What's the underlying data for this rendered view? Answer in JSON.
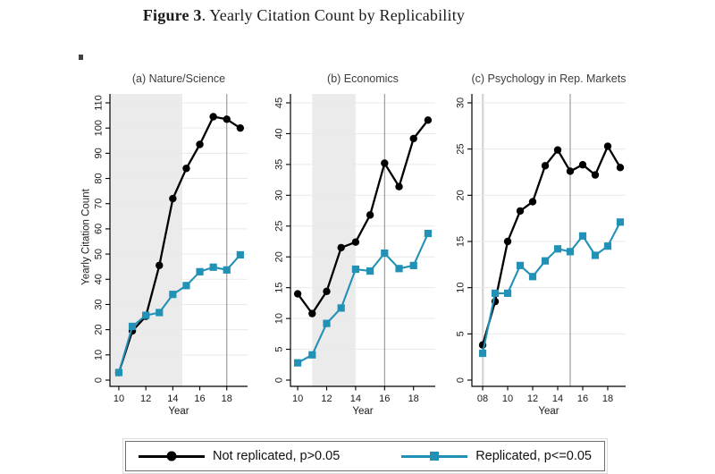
{
  "figure": {
    "title_bold": "Figure 3",
    "title_rest": ". Yearly Citation Count by Replicability"
  },
  "colors": {
    "not_replicated": "#000000",
    "replicated": "#2191b5",
    "shading": "#ebebeb",
    "shading_narrow": "#d6d6d6",
    "gridline": "#e9e9e9",
    "refline": "#8a8a8a",
    "axis": "#000000",
    "panel_title": "#3d3d3d",
    "tick_text": "#1a1a1a"
  },
  "legend": {
    "items": [
      {
        "label": "Not replicated, p>0.05",
        "marker": "circle",
        "color": "#000000"
      },
      {
        "label": "Replicated, p<=0.05",
        "marker": "square",
        "color": "#2191b5"
      }
    ]
  },
  "chart_data": [
    {
      "type": "line",
      "title": "(a) Nature/Science",
      "xlabel": "Year",
      "ylabel": "Yearly Citation Count",
      "x": [
        10,
        11,
        12,
        13,
        14,
        15,
        16,
        17,
        18,
        19
      ],
      "xtick_values": [
        10,
        12,
        14,
        16,
        18
      ],
      "xtick_labels": [
        "10",
        "12",
        "14",
        "16",
        "18"
      ],
      "ylim": [
        0,
        110
      ],
      "yticks": [
        0,
        10,
        20,
        30,
        40,
        50,
        60,
        70,
        80,
        90,
        100,
        110
      ],
      "shaded_span": [
        9.34,
        14.7
      ],
      "refline_x": 18,
      "grid": true,
      "legend_position": "bottom",
      "series": [
        {
          "name": "Not replicated, p>0.05",
          "marker": "circle",
          "color": "#000000",
          "values": [
            3,
            19.5,
            25.3,
            45.5,
            72,
            84,
            93.5,
            104.5,
            103.5,
            100
          ]
        },
        {
          "name": "Replicated, p<=0.05",
          "marker": "square",
          "color": "#2191b5",
          "values": [
            3,
            21.3,
            25.7,
            26.8,
            34,
            37.5,
            43,
            44.8,
            43.7,
            49.7
          ]
        }
      ]
    },
    {
      "type": "line",
      "title": "(b) Economics",
      "xlabel": "Year",
      "ylabel": "",
      "x": [
        10,
        11,
        12,
        13,
        14,
        15,
        16,
        17,
        18,
        19
      ],
      "xtick_values": [
        10,
        12,
        14,
        16,
        18
      ],
      "xtick_labels": [
        "10",
        "12",
        "14",
        "16",
        "18"
      ],
      "ylim": [
        0,
        45
      ],
      "yticks": [
        0,
        5,
        10,
        15,
        20,
        25,
        30,
        35,
        40,
        45
      ],
      "shaded_span": [
        11,
        14
      ],
      "refline_x": 16,
      "grid": true,
      "legend_position": "bottom",
      "series": [
        {
          "name": "Not replicated, p>0.05",
          "marker": "circle",
          "color": "#000000",
          "values": [
            14,
            10.8,
            14.4,
            21.5,
            22.4,
            26.8,
            35.2,
            31.4,
            39.2,
            42.2
          ]
        },
        {
          "name": "Replicated, p<=0.05",
          "marker": "square",
          "color": "#2191b5",
          "values": [
            2.8,
            4.1,
            9.2,
            11.7,
            18,
            17.7,
            20.6,
            18.1,
            18.6,
            23.8
          ]
        }
      ]
    },
    {
      "type": "line",
      "title": "(c) Psychology in Rep. Markets",
      "xlabel": "Year",
      "ylabel": "",
      "x": [
        8,
        9,
        10,
        11,
        12,
        13,
        14,
        15,
        16,
        17,
        18,
        19
      ],
      "xtick_values": [
        8,
        10,
        12,
        14,
        16,
        18
      ],
      "xtick_labels": [
        "08",
        "10",
        "12",
        "14",
        "16",
        "18"
      ],
      "ylim": [
        0,
        30
      ],
      "yticks": [
        0,
        5,
        10,
        15,
        20,
        25,
        30
      ],
      "shaded_span": [
        7.93,
        8.1
      ],
      "refline_x": 15,
      "grid": true,
      "legend_position": "bottom",
      "series": [
        {
          "name": "Not replicated, p>0.05",
          "marker": "circle",
          "color": "#000000",
          "values": [
            3.8,
            8.5,
            15,
            18.3,
            19.3,
            23.2,
            24.9,
            22.6,
            23.3,
            22.2,
            25.3,
            23
          ]
        },
        {
          "name": "Replicated, p<=0.05",
          "marker": "square",
          "color": "#2191b5",
          "values": [
            2.9,
            9.4,
            9.4,
            12.4,
            11.2,
            12.9,
            14.2,
            13.9,
            15.6,
            13.5,
            14.5,
            17.1
          ]
        }
      ]
    }
  ]
}
